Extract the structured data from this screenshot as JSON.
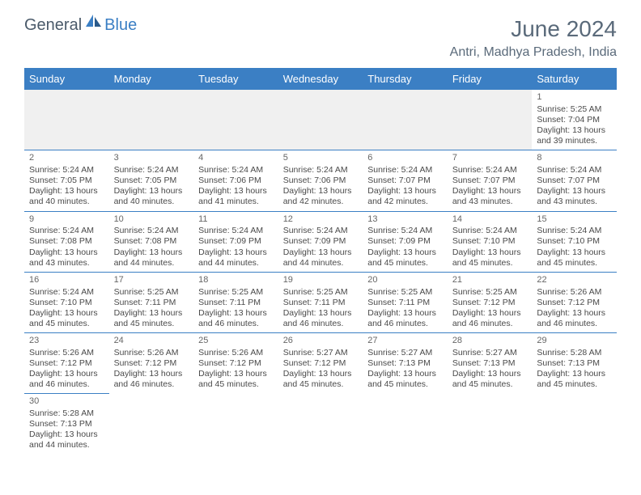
{
  "logo": {
    "text_dark": "General",
    "text_blue": "Blue"
  },
  "title": "June 2024",
  "location": "Antri, Madhya Pradesh, India",
  "colors": {
    "header_bg": "#3b7fc4",
    "header_text": "#ffffff",
    "border": "#3b7fc4",
    "text_gray": "#5a6a7a",
    "cell_text": "#4a4a4a",
    "empty_bg": "#f0f0f0"
  },
  "day_headers": [
    "Sunday",
    "Monday",
    "Tuesday",
    "Wednesday",
    "Thursday",
    "Friday",
    "Saturday"
  ],
  "weeks": [
    [
      null,
      null,
      null,
      null,
      null,
      null,
      {
        "n": "1",
        "sr": "5:25 AM",
        "ss": "7:04 PM",
        "dl": "13 hours and 39 minutes."
      }
    ],
    [
      {
        "n": "2",
        "sr": "5:24 AM",
        "ss": "7:05 PM",
        "dl": "13 hours and 40 minutes."
      },
      {
        "n": "3",
        "sr": "5:24 AM",
        "ss": "7:05 PM",
        "dl": "13 hours and 40 minutes."
      },
      {
        "n": "4",
        "sr": "5:24 AM",
        "ss": "7:06 PM",
        "dl": "13 hours and 41 minutes."
      },
      {
        "n": "5",
        "sr": "5:24 AM",
        "ss": "7:06 PM",
        "dl": "13 hours and 42 minutes."
      },
      {
        "n": "6",
        "sr": "5:24 AM",
        "ss": "7:07 PM",
        "dl": "13 hours and 42 minutes."
      },
      {
        "n": "7",
        "sr": "5:24 AM",
        "ss": "7:07 PM",
        "dl": "13 hours and 43 minutes."
      },
      {
        "n": "8",
        "sr": "5:24 AM",
        "ss": "7:07 PM",
        "dl": "13 hours and 43 minutes."
      }
    ],
    [
      {
        "n": "9",
        "sr": "5:24 AM",
        "ss": "7:08 PM",
        "dl": "13 hours and 43 minutes."
      },
      {
        "n": "10",
        "sr": "5:24 AM",
        "ss": "7:08 PM",
        "dl": "13 hours and 44 minutes."
      },
      {
        "n": "11",
        "sr": "5:24 AM",
        "ss": "7:09 PM",
        "dl": "13 hours and 44 minutes."
      },
      {
        "n": "12",
        "sr": "5:24 AM",
        "ss": "7:09 PM",
        "dl": "13 hours and 44 minutes."
      },
      {
        "n": "13",
        "sr": "5:24 AM",
        "ss": "7:09 PM",
        "dl": "13 hours and 45 minutes."
      },
      {
        "n": "14",
        "sr": "5:24 AM",
        "ss": "7:10 PM",
        "dl": "13 hours and 45 minutes."
      },
      {
        "n": "15",
        "sr": "5:24 AM",
        "ss": "7:10 PM",
        "dl": "13 hours and 45 minutes."
      }
    ],
    [
      {
        "n": "16",
        "sr": "5:24 AM",
        "ss": "7:10 PM",
        "dl": "13 hours and 45 minutes."
      },
      {
        "n": "17",
        "sr": "5:25 AM",
        "ss": "7:11 PM",
        "dl": "13 hours and 45 minutes."
      },
      {
        "n": "18",
        "sr": "5:25 AM",
        "ss": "7:11 PM",
        "dl": "13 hours and 46 minutes."
      },
      {
        "n": "19",
        "sr": "5:25 AM",
        "ss": "7:11 PM",
        "dl": "13 hours and 46 minutes."
      },
      {
        "n": "20",
        "sr": "5:25 AM",
        "ss": "7:11 PM",
        "dl": "13 hours and 46 minutes."
      },
      {
        "n": "21",
        "sr": "5:25 AM",
        "ss": "7:12 PM",
        "dl": "13 hours and 46 minutes."
      },
      {
        "n": "22",
        "sr": "5:26 AM",
        "ss": "7:12 PM",
        "dl": "13 hours and 46 minutes."
      }
    ],
    [
      {
        "n": "23",
        "sr": "5:26 AM",
        "ss": "7:12 PM",
        "dl": "13 hours and 46 minutes."
      },
      {
        "n": "24",
        "sr": "5:26 AM",
        "ss": "7:12 PM",
        "dl": "13 hours and 46 minutes."
      },
      {
        "n": "25",
        "sr": "5:26 AM",
        "ss": "7:12 PM",
        "dl": "13 hours and 45 minutes."
      },
      {
        "n": "26",
        "sr": "5:27 AM",
        "ss": "7:12 PM",
        "dl": "13 hours and 45 minutes."
      },
      {
        "n": "27",
        "sr": "5:27 AM",
        "ss": "7:13 PM",
        "dl": "13 hours and 45 minutes."
      },
      {
        "n": "28",
        "sr": "5:27 AM",
        "ss": "7:13 PM",
        "dl": "13 hours and 45 minutes."
      },
      {
        "n": "29",
        "sr": "5:28 AM",
        "ss": "7:13 PM",
        "dl": "13 hours and 45 minutes."
      }
    ],
    [
      {
        "n": "30",
        "sr": "5:28 AM",
        "ss": "7:13 PM",
        "dl": "13 hours and 44 minutes."
      },
      null,
      null,
      null,
      null,
      null,
      null
    ]
  ],
  "labels": {
    "sunrise": "Sunrise:",
    "sunset": "Sunset:",
    "daylight": "Daylight:"
  }
}
